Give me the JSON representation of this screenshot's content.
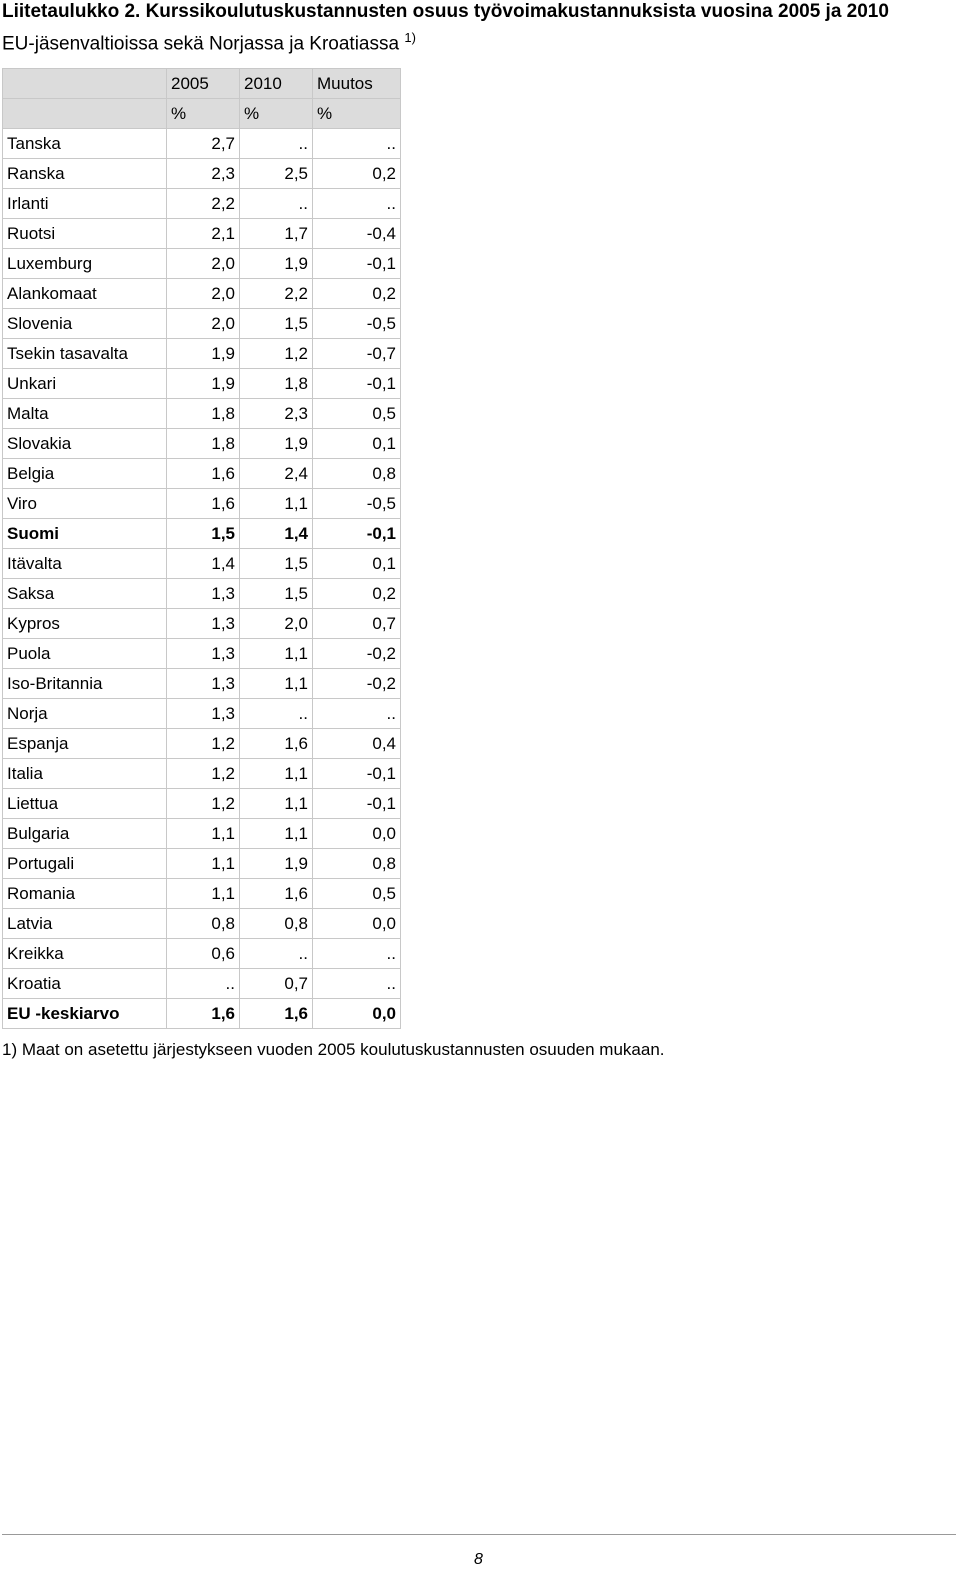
{
  "header": {
    "title_line1": "Liitetaulukko 2. Kurssikoulutuskustannusten osuus työvoimakustannuksista vuosina 2005 ja 2010",
    "title_line2": "EU-jäsenvaltioissa sekä Norjassa ja Kroatiassa",
    "title_note": "1)"
  },
  "table": {
    "columns": [
      "2005",
      "2010",
      "Muutos"
    ],
    "units": [
      "%",
      "%",
      "%"
    ],
    "rows": [
      {
        "cells": [
          "Tanska",
          "2,7",
          "..",
          ".."
        ]
      },
      {
        "cells": [
          "Ranska",
          "2,3",
          "2,5",
          "0,2"
        ]
      },
      {
        "cells": [
          "Irlanti",
          "2,2",
          "..",
          ".."
        ]
      },
      {
        "cells": [
          "Ruotsi",
          "2,1",
          "1,7",
          "-0,4"
        ]
      },
      {
        "cells": [
          "Luxemburg",
          "2,0",
          "1,9",
          "-0,1"
        ]
      },
      {
        "cells": [
          "Alankomaat",
          "2,0",
          "2,2",
          "0,2"
        ]
      },
      {
        "cells": [
          "Slovenia",
          "2,0",
          "1,5",
          "-0,5"
        ]
      },
      {
        "cells": [
          "Tsekin tasavalta",
          "1,9",
          "1,2",
          "-0,7"
        ]
      },
      {
        "cells": [
          "Unkari",
          "1,9",
          "1,8",
          "-0,1"
        ]
      },
      {
        "cells": [
          "Malta",
          "1,8",
          "2,3",
          "0,5"
        ]
      },
      {
        "cells": [
          "Slovakia",
          "1,8",
          "1,9",
          "0,1"
        ]
      },
      {
        "cells": [
          "Belgia",
          "1,6",
          "2,4",
          "0,8"
        ]
      },
      {
        "cells": [
          "Viro",
          "1,6",
          "1,1",
          "-0,5"
        ]
      },
      {
        "cells": [
          "Suomi",
          "1,5",
          "1,4",
          "-0,1"
        ],
        "bold": true
      },
      {
        "cells": [
          "Itävalta",
          "1,4",
          "1,5",
          "0,1"
        ]
      },
      {
        "cells": [
          "Saksa",
          "1,3",
          "1,5",
          "0,2"
        ]
      },
      {
        "cells": [
          "Kypros",
          "1,3",
          "2,0",
          "0,7"
        ]
      },
      {
        "cells": [
          "Puola",
          "1,3",
          "1,1",
          "-0,2"
        ]
      },
      {
        "cells": [
          "Iso-Britannia",
          "1,3",
          "1,1",
          "-0,2"
        ]
      },
      {
        "cells": [
          "Norja",
          "1,3",
          "..",
          ".."
        ]
      },
      {
        "cells": [
          "Espanja",
          "1,2",
          "1,6",
          "0,4"
        ]
      },
      {
        "cells": [
          "Italia",
          "1,2",
          "1,1",
          "-0,1"
        ]
      },
      {
        "cells": [
          "Liettua",
          "1,2",
          "1,1",
          "-0,1"
        ]
      },
      {
        "cells": [
          "Bulgaria",
          "1,1",
          "1,1",
          "0,0"
        ]
      },
      {
        "cells": [
          "Portugali",
          "1,1",
          "1,9",
          "0,8"
        ]
      },
      {
        "cells": [
          "Romania",
          "1,1",
          "1,6",
          "0,5"
        ]
      },
      {
        "cells": [
          "Latvia",
          "0,8",
          "0,8",
          "0,0"
        ]
      },
      {
        "cells": [
          "Kreikka",
          "0,6",
          "..",
          ".."
        ]
      },
      {
        "cells": [
          "Kroatia",
          "..",
          "0,7",
          ".."
        ]
      },
      {
        "cells": [
          "EU -keskiarvo",
          "1,6",
          "1,6",
          "0,0"
        ],
        "bold": true
      }
    ]
  },
  "footnote": "1) Maat on asetettu järjestykseen vuoden 2005 koulutuskustannusten osuuden mukaan.",
  "page_number": "8"
}
